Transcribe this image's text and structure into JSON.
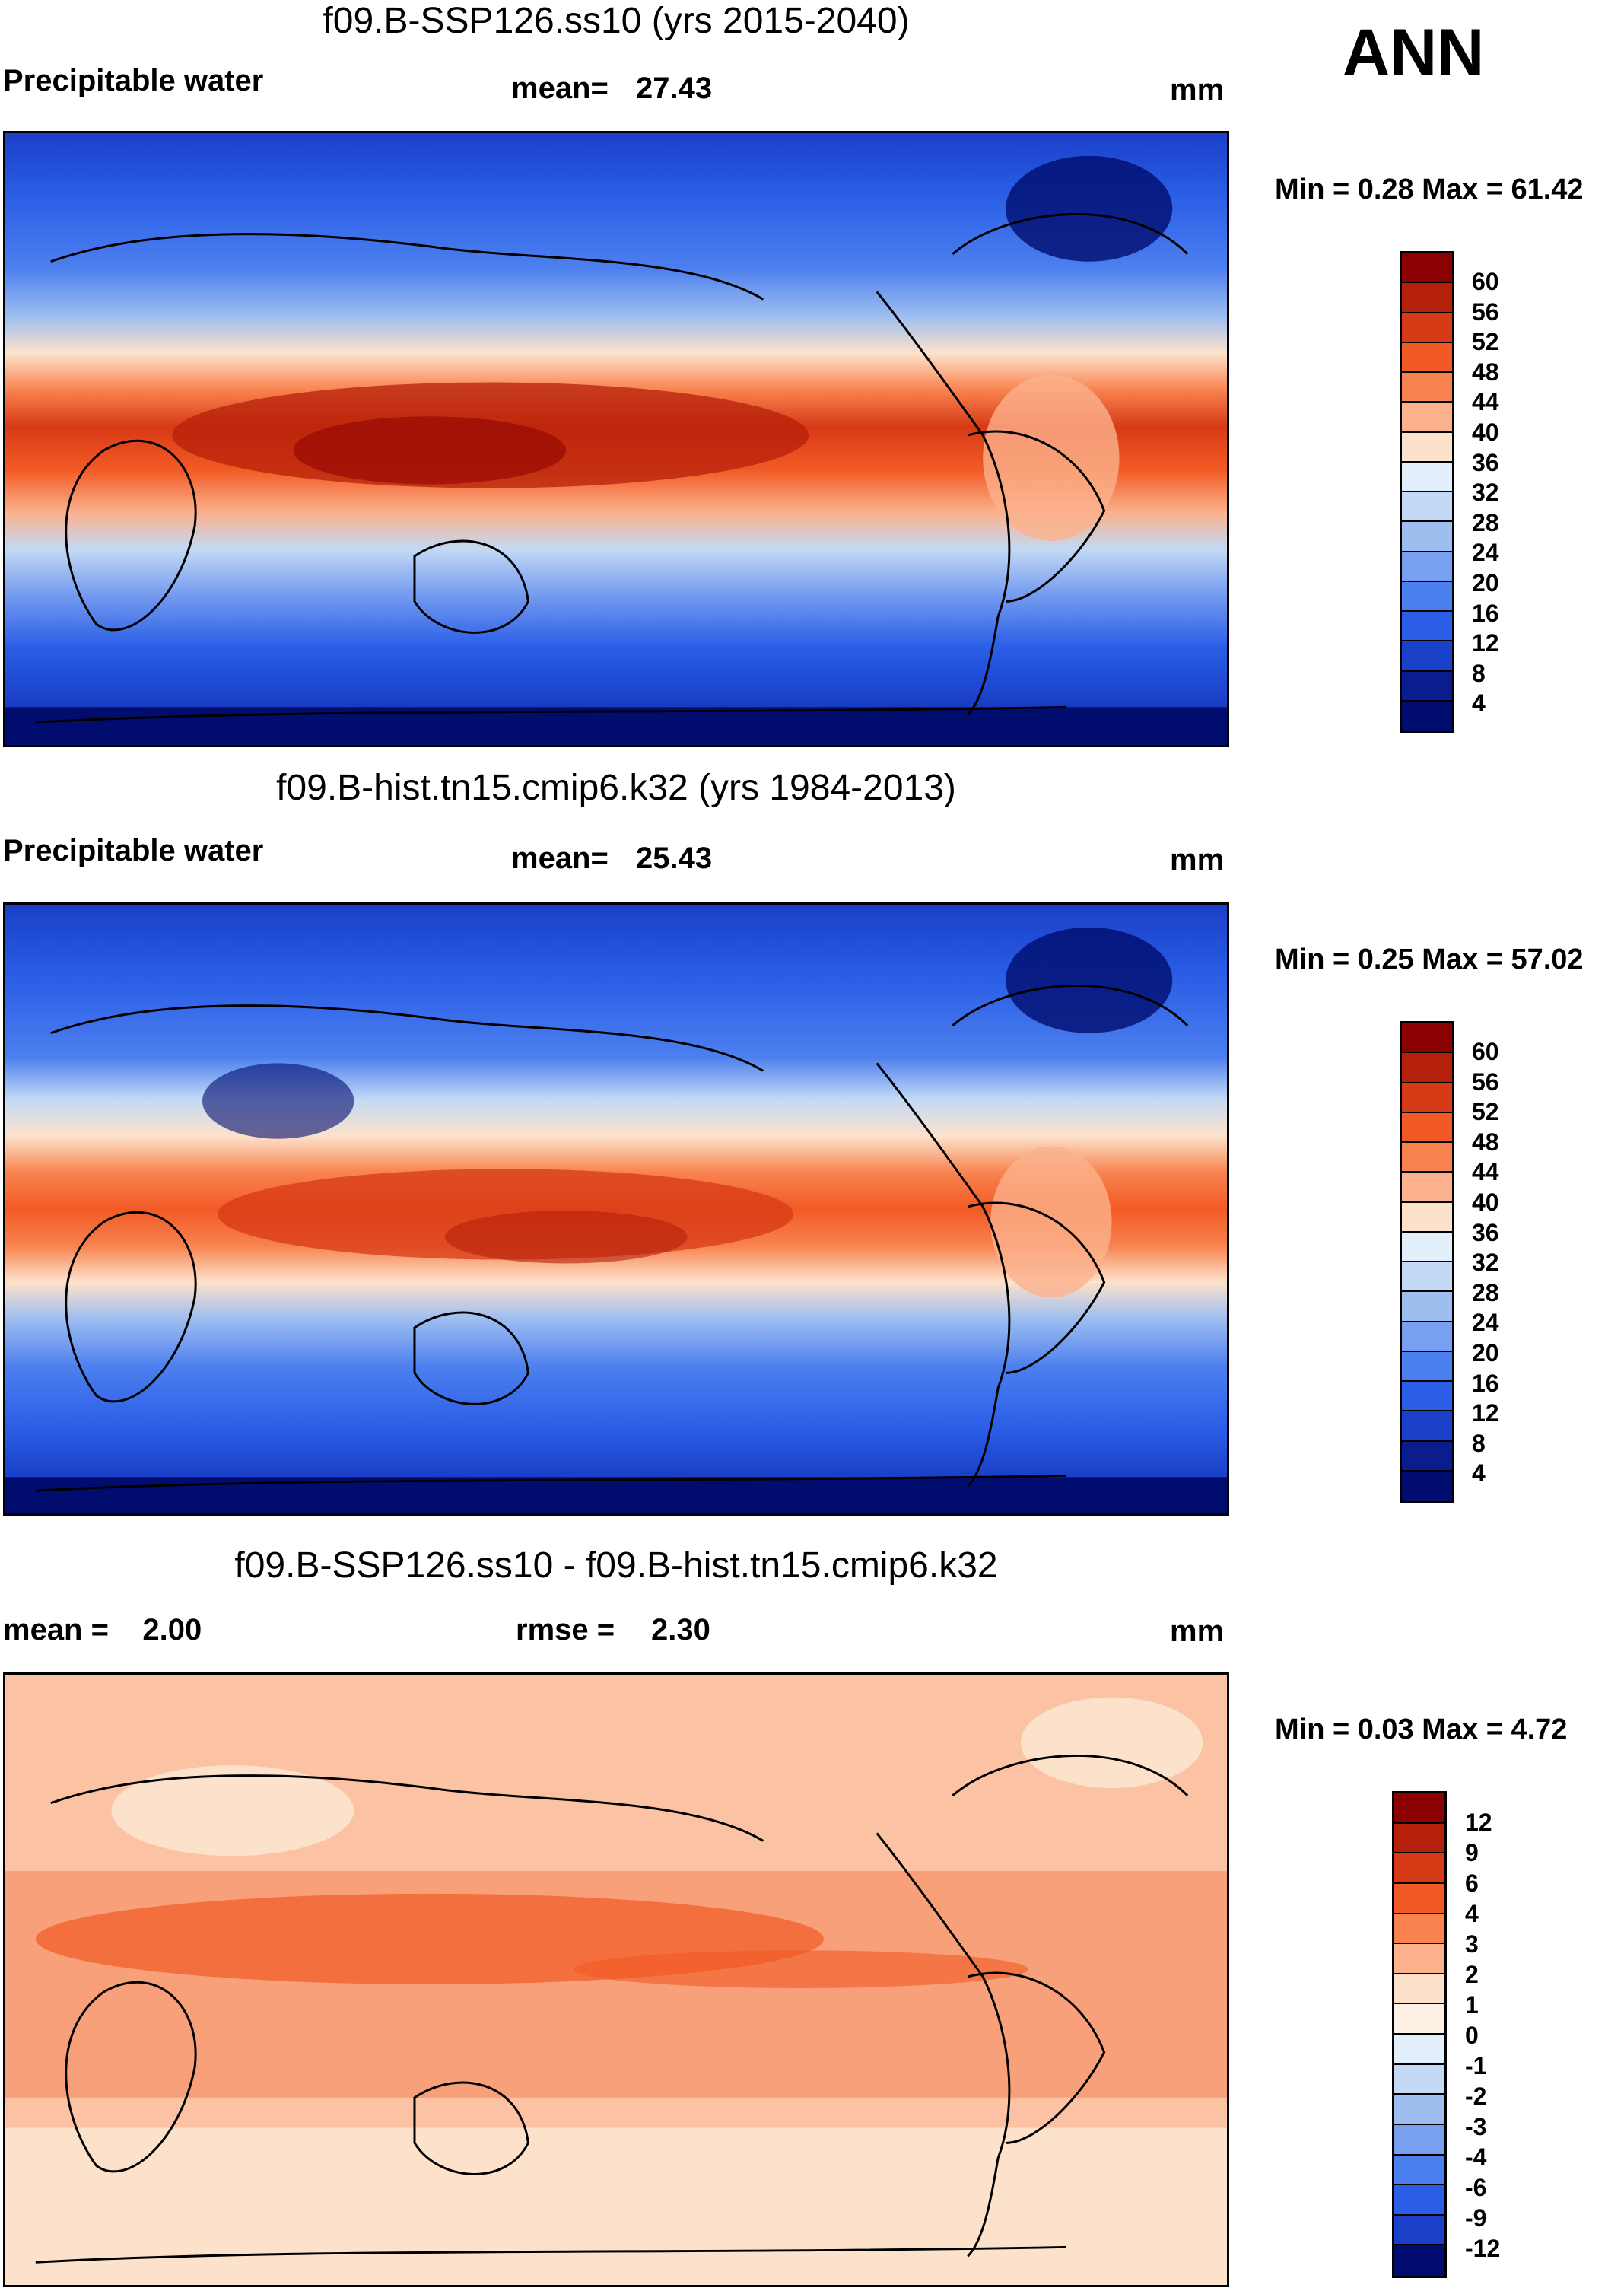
{
  "season": "ANN",
  "panels": [
    {
      "id": "ssp",
      "title": "f09.B-SSP126.ss10 (yrs 2015-2040)",
      "left_label": "Precipitable water",
      "stat_label": "mean=",
      "stat_value": "27.43",
      "units": "mm",
      "min_max": "Min =   0.28 Max =  61.42",
      "colorbar": {
        "labels": [
          "60",
          "56",
          "52",
          "48",
          "44",
          "40",
          "36",
          "32",
          "28",
          "24",
          "20",
          "16",
          "12",
          "8",
          "4"
        ],
        "colors": [
          "#8b0000",
          "#b5200a",
          "#d73a16",
          "#f25a25",
          "#f8834f",
          "#fbb18c",
          "#fde2cb",
          "#e3effa",
          "#c3d9f5",
          "#9ebef0",
          "#799ff0",
          "#4c7fee",
          "#2a5ee6",
          "#1a3fc8",
          "#0a1d8f",
          "#000c6e"
        ]
      }
    },
    {
      "id": "hist",
      "title": "f09.B-hist.tn15.cmip6.k32 (yrs 1984-2013)",
      "left_label": "Precipitable water",
      "stat_label": "mean=",
      "stat_value": "25.43",
      "units": "mm",
      "min_max": "Min =   0.25 Max =  57.02",
      "colorbar": {
        "labels": [
          "60",
          "56",
          "52",
          "48",
          "44",
          "40",
          "36",
          "32",
          "28",
          "24",
          "20",
          "16",
          "12",
          "8",
          "4"
        ],
        "colors": [
          "#8b0000",
          "#b5200a",
          "#d73a16",
          "#f25a25",
          "#f8834f",
          "#fbb18c",
          "#fde2cb",
          "#e3effa",
          "#c3d9f5",
          "#9ebef0",
          "#799ff0",
          "#4c7fee",
          "#2a5ee6",
          "#1a3fc8",
          "#0a1d8f",
          "#000c6e"
        ]
      }
    },
    {
      "id": "diff",
      "title": "f09.B-SSP126.ss10 - f09.B-hist.tn15.cmip6.k32",
      "left_label": "mean =    2.00",
      "stat_label": "rmse =",
      "stat_value": "2.30",
      "units": "mm",
      "min_max": "Min =   0.03 Max =    4.72",
      "colorbar": {
        "labels": [
          "12",
          "9",
          "6",
          "4",
          "3",
          "2",
          "1",
          "0",
          "-1",
          "-2",
          "-3",
          "-4",
          "-6",
          "-9",
          "-12"
        ],
        "colors": [
          "#8b0000",
          "#b5200a",
          "#d73a16",
          "#f25a25",
          "#f8834f",
          "#fbb18c",
          "#fde2cb",
          "#fdf0e4",
          "#e3effa",
          "#c3d9f5",
          "#9ebef0",
          "#799ff0",
          "#4c7fee",
          "#2a5ee6",
          "#1a3fc8",
          "#000c6e"
        ]
      }
    }
  ]
}
